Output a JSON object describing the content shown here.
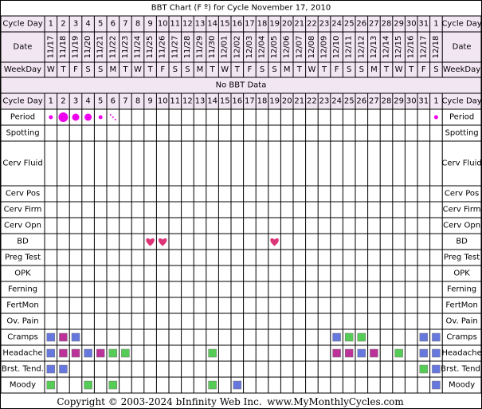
{
  "title": "BBT Chart (F º) for Cycle November 17, 2010",
  "row_labels": {
    "cycle_day": "Cycle Day",
    "date": "Date",
    "weekday": "WeekDay"
  },
  "no_bbt_label": "No BBT Data",
  "cycle_days": [
    "1",
    "2",
    "3",
    "4",
    "5",
    "6",
    "7",
    "8",
    "9",
    "10",
    "11",
    "12",
    "13",
    "14",
    "15",
    "16",
    "17",
    "18",
    "19",
    "20",
    "21",
    "22",
    "23",
    "24",
    "25",
    "26",
    "27",
    "28",
    "29",
    "30",
    "31",
    "1"
  ],
  "dates": [
    "11/17",
    "11/18",
    "11/19",
    "11/20",
    "11/21",
    "11/22",
    "11/23",
    "11/24",
    "11/25",
    "11/26",
    "11/27",
    "11/28",
    "11/29",
    "11/30",
    "12/01",
    "12/02",
    "12/03",
    "12/04",
    "12/05",
    "12/06",
    "12/07",
    "12/08",
    "12/09",
    "12/10",
    "12/11",
    "12/12",
    "12/13",
    "12/14",
    "12/15",
    "12/16",
    "12/17",
    "12/18"
  ],
  "weekdays": [
    "W",
    "T",
    "F",
    "S",
    "S",
    "M",
    "T",
    "W",
    "T",
    "F",
    "S",
    "S",
    "M",
    "T",
    "W",
    "T",
    "F",
    "S",
    "S",
    "M",
    "T",
    "W",
    "T",
    "F",
    "S",
    "S",
    "M",
    "T",
    "W",
    "T",
    "F",
    "S"
  ],
  "symptom_rows": [
    {
      "label": "Period"
    },
    {
      "label": "Spotting"
    },
    {
      "label": "Cerv Fluid"
    },
    {
      "label": "Cerv Pos"
    },
    {
      "label": "Cerv Firm"
    },
    {
      "label": "Cerv Opn"
    },
    {
      "label": "BD"
    },
    {
      "label": "Preg Test"
    },
    {
      "label": "OPK"
    },
    {
      "label": "Ferning"
    },
    {
      "label": "FertMon"
    },
    {
      "label": "Ov. Pain"
    },
    {
      "label": "Cramps"
    },
    {
      "label": "Headache"
    },
    {
      "label": "Brst. Tend."
    },
    {
      "label": "Moody"
    }
  ],
  "colors": {
    "grid": "#000000",
    "header_bg": "#f3e6f3",
    "period": "#ee00ee",
    "heart": "#dd3377",
    "blue": "#6677dd",
    "magenta": "#bb3399",
    "green": "#55cc55"
  },
  "chart_data": {
    "type": "table",
    "period": [
      {
        "day": 1,
        "intensity": "light"
      },
      {
        "day": 2,
        "intensity": "heavy"
      },
      {
        "day": 3,
        "intensity": "medium"
      },
      {
        "day": 4,
        "intensity": "medium"
      },
      {
        "day": 5,
        "intensity": "light"
      },
      {
        "day": 6,
        "intensity": "spotting"
      },
      {
        "day": 32,
        "intensity": "light"
      }
    ],
    "bd": [
      9,
      10,
      19
    ],
    "symptoms": {
      "Cramps": [
        {
          "day": 1,
          "color": "blue"
        },
        {
          "day": 2,
          "color": "magenta"
        },
        {
          "day": 3,
          "color": "blue"
        },
        {
          "day": 24,
          "color": "blue"
        },
        {
          "day": 25,
          "color": "green"
        },
        {
          "day": 26,
          "color": "green"
        },
        {
          "day": 31,
          "color": "blue"
        },
        {
          "day": 32,
          "color": "blue"
        }
      ],
      "Headache": [
        {
          "day": 1,
          "color": "blue"
        },
        {
          "day": 2,
          "color": "magenta"
        },
        {
          "day": 3,
          "color": "magenta"
        },
        {
          "day": 4,
          "color": "blue"
        },
        {
          "day": 5,
          "color": "magenta"
        },
        {
          "day": 6,
          "color": "green"
        },
        {
          "day": 7,
          "color": "green"
        },
        {
          "day": 14,
          "color": "green"
        },
        {
          "day": 24,
          "color": "magenta"
        },
        {
          "day": 25,
          "color": "magenta"
        },
        {
          "day": 26,
          "color": "blue"
        },
        {
          "day": 27,
          "color": "magenta"
        },
        {
          "day": 29,
          "color": "green"
        },
        {
          "day": 31,
          "color": "blue"
        },
        {
          "day": 32,
          "color": "blue"
        }
      ],
      "Brst. Tend.": [
        {
          "day": 1,
          "color": "blue"
        },
        {
          "day": 2,
          "color": "blue"
        },
        {
          "day": 31,
          "color": "green"
        },
        {
          "day": 32,
          "color": "blue"
        }
      ],
      "Moody": [
        {
          "day": 1,
          "color": "green"
        },
        {
          "day": 4,
          "color": "green"
        },
        {
          "day": 6,
          "color": "green"
        },
        {
          "day": 14,
          "color": "green"
        },
        {
          "day": 16,
          "color": "blue"
        },
        {
          "day": 32,
          "color": "blue"
        }
      ]
    }
  },
  "footer": {
    "copyright": "Copyright © 2003-2024 bInfinity Web Inc.",
    "site": "www.MyMonthlyCycles.com"
  }
}
